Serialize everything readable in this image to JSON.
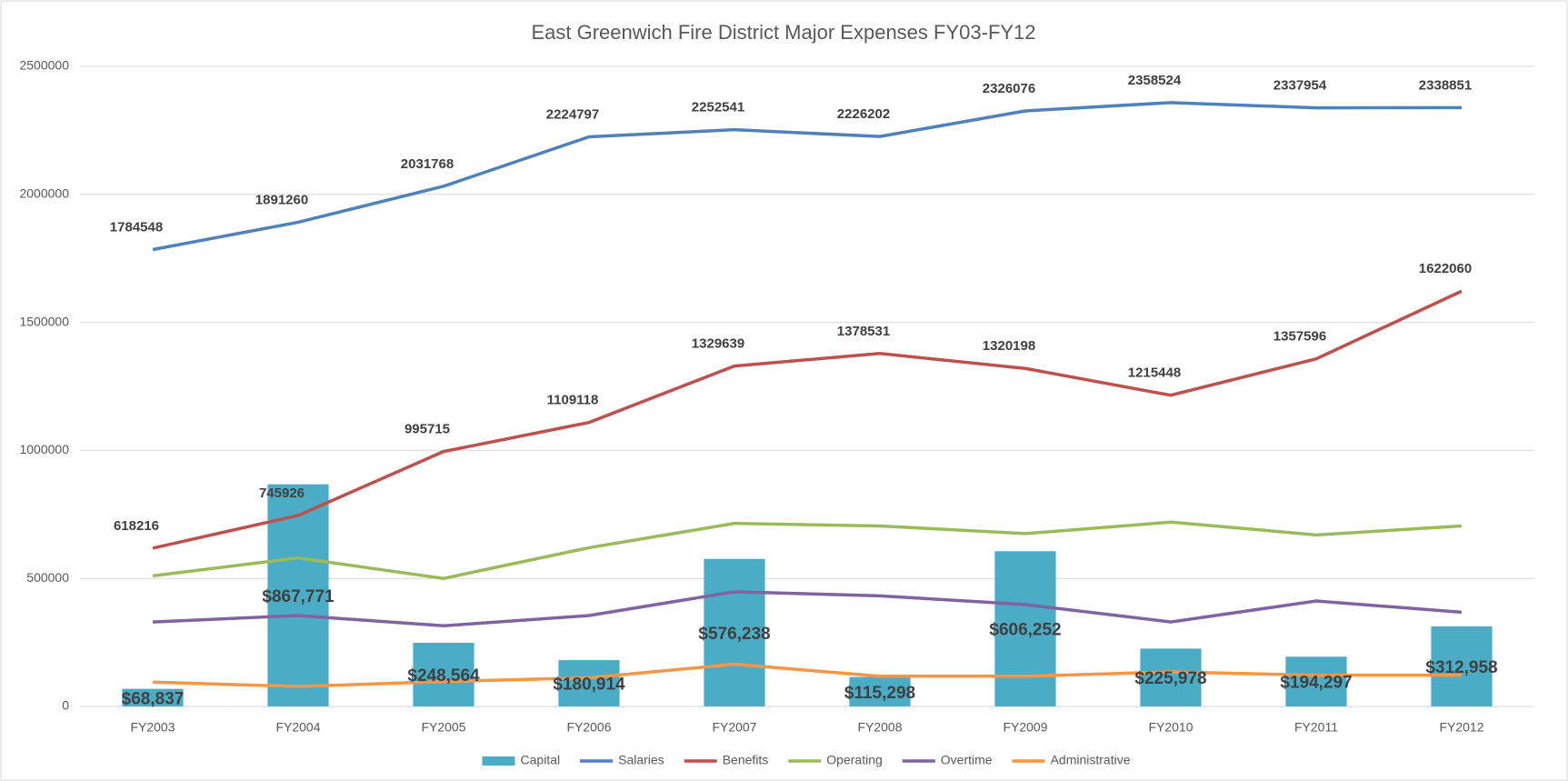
{
  "chart_data": {
    "type": "combo",
    "title": "East Greenwich Fire District Major Expenses FY03-FY12",
    "categories": [
      "FY2003",
      "FY2004",
      "FY2005",
      "FY2006",
      "FY2007",
      "FY2008",
      "FY2009",
      "FY2010",
      "FY2011",
      "FY2012"
    ],
    "series": [
      {
        "name": "Capital",
        "type": "bar",
        "color": "#4bacc6",
        "values": [
          68837,
          867771,
          248564,
          180914,
          576238,
          115298,
          606252,
          225978,
          194297,
          312958
        ],
        "value_labels": [
          "$68,837",
          "$867,771",
          "$248,564",
          "$180,914",
          "$576,238",
          "$115,298",
          "$606,252",
          "$225,978",
          "$194,297",
          "$312,958"
        ]
      },
      {
        "name": "Salaries",
        "type": "line",
        "color": "#4f81bd",
        "show_labels": true,
        "values": [
          1784548,
          1891260,
          2031768,
          2224797,
          2252541,
          2226202,
          2326076,
          2358524,
          2337954,
          2338851
        ]
      },
      {
        "name": "Benefits",
        "type": "line",
        "color": "#c0504d",
        "show_labels": true,
        "values": [
          618216,
          745926,
          995715,
          1109118,
          1329639,
          1378531,
          1320198,
          1215448,
          1357596,
          1622060
        ]
      },
      {
        "name": "Operating",
        "type": "line",
        "color": "#9bbb59",
        "show_labels": false,
        "values": [
          510000,
          580000,
          500000,
          620000,
          715000,
          705000,
          675000,
          720000,
          670000,
          705000
        ]
      },
      {
        "name": "Overtime",
        "type": "line",
        "color": "#8064a2",
        "show_labels": false,
        "values": [
          330000,
          355000,
          315000,
          355000,
          448000,
          432000,
          398000,
          330000,
          412000,
          368000
        ]
      },
      {
        "name": "Administrative",
        "type": "line",
        "color": "#f79646",
        "show_labels": false,
        "values": [
          95000,
          78000,
          97000,
          112000,
          165000,
          118000,
          118000,
          135000,
          122000,
          122000
        ]
      }
    ],
    "ylim": [
      0,
      2500000
    ],
    "yticks": [
      0,
      500000,
      1000000,
      1500000,
      2000000,
      2500000
    ],
    "grid": true,
    "legend": "bottom"
  }
}
